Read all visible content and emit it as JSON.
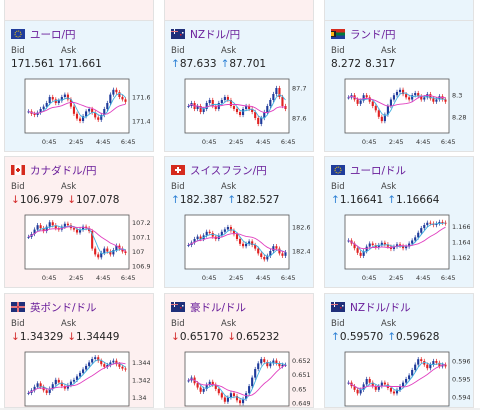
{
  "labels": {
    "bid": "Bid",
    "ask": "Ask"
  },
  "colors": {
    "up_bg": "#eaf5fc",
    "down_bg": "#fdf0f0",
    "name": "#6a1e9a",
    "arrow_up": "#2a7fd4",
    "arrow_down": "#d32a2a",
    "candle_up": "#1e3a9a",
    "candle_down": "#e02020",
    "ma_short": "#e040c0",
    "ma_long": "#40b0e0"
  },
  "top_cards": [
    {
      "direction": "down"
    },
    {
      "direction": "down"
    },
    {
      "direction": "up"
    }
  ],
  "pairs": [
    {
      "name": "ユーロ/円",
      "flag_icon": "eu-flag-icon",
      "direction": "up",
      "bid": "171.561",
      "ask": "171.661",
      "bid_arrow": "",
      "ask_arrow": "",
      "x_ticks": [
        "0:45",
        "2:45",
        "4:45",
        "6:45"
      ],
      "y_ticks": [
        "171.6",
        "171.4"
      ],
      "ylim": [
        171.3,
        171.75
      ],
      "candles": [
        171.48,
        171.46,
        171.45,
        171.47,
        171.5,
        171.52,
        171.55,
        171.6,
        171.58,
        171.55,
        171.57,
        171.6,
        171.62,
        171.58,
        171.52,
        171.46,
        171.42,
        171.4,
        171.44,
        171.48,
        171.5,
        171.47,
        171.43,
        171.41,
        171.45,
        171.5,
        171.55,
        171.62,
        171.66,
        171.64,
        171.6,
        171.58,
        171.56
      ]
    },
    {
      "name": "NZドル/円",
      "flag_icon": "nz-flag-icon",
      "direction": "up",
      "bid": "87.633",
      "ask": "87.701",
      "bid_arrow": "↑",
      "ask_arrow": "↑",
      "x_ticks": [
        "0:45",
        "2:45",
        "4:45",
        "6:45"
      ],
      "y_ticks": [
        "87.7",
        "87.6"
      ],
      "ylim": [
        87.55,
        87.73
      ],
      "candles": [
        87.64,
        87.65,
        87.63,
        87.64,
        87.62,
        87.63,
        87.65,
        87.66,
        87.64,
        87.63,
        87.65,
        87.66,
        87.67,
        87.66,
        87.64,
        87.63,
        87.62,
        87.61,
        87.63,
        87.64,
        87.63,
        87.62,
        87.6,
        87.58,
        87.6,
        87.62,
        87.64,
        87.66,
        87.68,
        87.7,
        87.67,
        87.64,
        87.63
      ]
    },
    {
      "name": "ランド/円",
      "flag_icon": "za-flag-icon",
      "direction": "up",
      "bid": "8.272",
      "ask": "8.317",
      "bid_arrow": "",
      "ask_arrow": "",
      "x_ticks": [
        "0:45",
        "2:45",
        "4:45",
        "6:45"
      ],
      "y_ticks": [
        "8.3",
        "8.28"
      ],
      "ylim": [
        8.265,
        8.315
      ],
      "candles": [
        8.298,
        8.3,
        8.296,
        8.292,
        8.295,
        8.3,
        8.298,
        8.294,
        8.29,
        8.286,
        8.28,
        8.276,
        8.282,
        8.29,
        8.296,
        8.3,
        8.303,
        8.305,
        8.301,
        8.298,
        8.296,
        8.3,
        8.302,
        8.299,
        8.296,
        8.298,
        8.301,
        8.297,
        8.294,
        8.296,
        8.299,
        8.296,
        8.294
      ]
    },
    {
      "name": "カナダドル/円",
      "flag_icon": "ca-flag-icon",
      "direction": "down",
      "bid": "106.979",
      "ask": "107.078",
      "bid_arrow": "↓",
      "ask_arrow": "↓",
      "x_ticks": [
        "0:45",
        "2:45",
        "4:45",
        "6:45"
      ],
      "y_ticks": [
        "107.2",
        "107.1",
        "107",
        "106.9"
      ],
      "ylim": [
        106.88,
        107.25
      ],
      "candles": [
        107.1,
        107.12,
        107.15,
        107.18,
        107.16,
        107.14,
        107.17,
        107.2,
        107.18,
        107.16,
        107.15,
        107.17,
        107.19,
        107.18,
        107.16,
        107.15,
        107.13,
        107.15,
        107.17,
        107.16,
        107.14,
        107.02,
        106.98,
        106.96,
        106.99,
        107.02,
        107.0,
        106.98,
        107.01,
        107.04,
        107.02,
        107.0,
        106.99
      ]
    },
    {
      "name": "スイスフラン/円",
      "flag_icon": "ch-flag-icon",
      "direction": "up",
      "bid": "182.387",
      "ask": "182.527",
      "bid_arrow": "↑",
      "ask_arrow": "↑",
      "x_ticks": [
        "0:45",
        "2:45",
        "4:45",
        "6:45"
      ],
      "y_ticks": [
        "182.6",
        "182.4"
      ],
      "ylim": [
        182.25,
        182.7
      ],
      "candles": [
        182.45,
        182.47,
        182.5,
        182.52,
        182.5,
        182.53,
        182.56,
        182.55,
        182.52,
        182.5,
        182.53,
        182.56,
        182.58,
        182.6,
        182.57,
        182.54,
        182.5,
        182.46,
        182.44,
        182.46,
        182.48,
        182.45,
        182.42,
        182.38,
        182.35,
        182.33,
        182.36,
        182.4,
        182.44,
        182.42,
        182.38,
        182.36,
        182.39
      ]
    },
    {
      "name": "ユーロ/ドル",
      "flag_icon": "eu-flag-icon",
      "direction": "up",
      "bid": "1.16641",
      "ask": "1.16664",
      "bid_arrow": "↑",
      "ask_arrow": "↑",
      "x_ticks": [
        "0:45",
        "2:45",
        "4:45",
        "6:45"
      ],
      "y_ticks": [
        "1.166",
        "1.164",
        "1.162"
      ],
      "ylim": [
        1.1605,
        1.1675
      ],
      "candles": [
        1.1642,
        1.1638,
        1.1632,
        1.1626,
        1.1622,
        1.1628,
        1.1634,
        1.1638,
        1.1636,
        1.1633,
        1.1636,
        1.1639,
        1.1637,
        1.1634,
        1.1631,
        1.1634,
        1.1637,
        1.1635,
        1.1632,
        1.1634,
        1.1638,
        1.1642,
        1.1646,
        1.1652,
        1.1658,
        1.1662,
        1.1665,
        1.1664,
        1.1662,
        1.1664,
        1.1666,
        1.1665,
        1.1664
      ]
    },
    {
      "name": "英ポンド/ドル",
      "flag_icon": "uk-flag-icon",
      "direction": "down",
      "bid": "1.34329",
      "ask": "1.34449",
      "bid_arrow": "↓",
      "ask_arrow": "↓",
      "x_ticks": [],
      "y_ticks": [
        "1.344",
        "1.342",
        "1.34"
      ],
      "ylim": [
        1.339,
        1.3452
      ],
      "candles": [
        1.3405,
        1.3408,
        1.3412,
        1.3416,
        1.3412,
        1.3408,
        1.3405,
        1.341,
        1.3415,
        1.342,
        1.3417,
        1.3413,
        1.341,
        1.3414,
        1.3418,
        1.342,
        1.3424,
        1.3428,
        1.3432,
        1.3436,
        1.344,
        1.3444,
        1.3446,
        1.3442,
        1.3438,
        1.3435,
        1.3437,
        1.344,
        1.3442,
        1.3438,
        1.3435,
        1.3433,
        1.3432
      ]
    },
    {
      "name": "豪ドル/ドル",
      "flag_icon": "au-flag-icon",
      "direction": "down",
      "bid": "0.65170",
      "ask": "0.65232",
      "bid_arrow": "↓",
      "ask_arrow": "↓",
      "x_ticks": [],
      "y_ticks": [
        "0.652",
        "0.651",
        "0.65",
        "0.649"
      ],
      "ylim": [
        0.6488,
        0.6526
      ],
      "candles": [
        0.6506,
        0.6508,
        0.6504,
        0.6501,
        0.6498,
        0.65,
        0.6503,
        0.6505,
        0.6503,
        0.65,
        0.6497,
        0.6494,
        0.6491,
        0.6494,
        0.6497,
        0.6495,
        0.6492,
        0.649,
        0.6493,
        0.6497,
        0.6502,
        0.6508,
        0.6514,
        0.6518,
        0.6521,
        0.6519,
        0.6516,
        0.6518,
        0.652,
        0.6518,
        0.6516,
        0.6517,
        0.6517
      ]
    },
    {
      "name": "NZドル/ドル",
      "flag_icon": "nz-flag-icon",
      "direction": "up",
      "bid": "0.59570",
      "ask": "0.59628",
      "bid_arrow": "↑",
      "ask_arrow": "↑",
      "x_ticks": [],
      "y_ticks": [
        "0.596",
        "0.595",
        "0.594"
      ],
      "ylim": [
        0.5935,
        0.5965
      ],
      "candles": [
        0.5948,
        0.5946,
        0.5944,
        0.5942,
        0.5944,
        0.5947,
        0.595,
        0.5948,
        0.5946,
        0.5944,
        0.5946,
        0.5948,
        0.5947,
        0.5945,
        0.5943,
        0.5942,
        0.5944,
        0.5946,
        0.5948,
        0.595,
        0.5952,
        0.5955,
        0.5958,
        0.5961,
        0.596,
        0.5958,
        0.5956,
        0.5958,
        0.596,
        0.5959,
        0.5957,
        0.5958,
        0.5957
      ]
    }
  ]
}
